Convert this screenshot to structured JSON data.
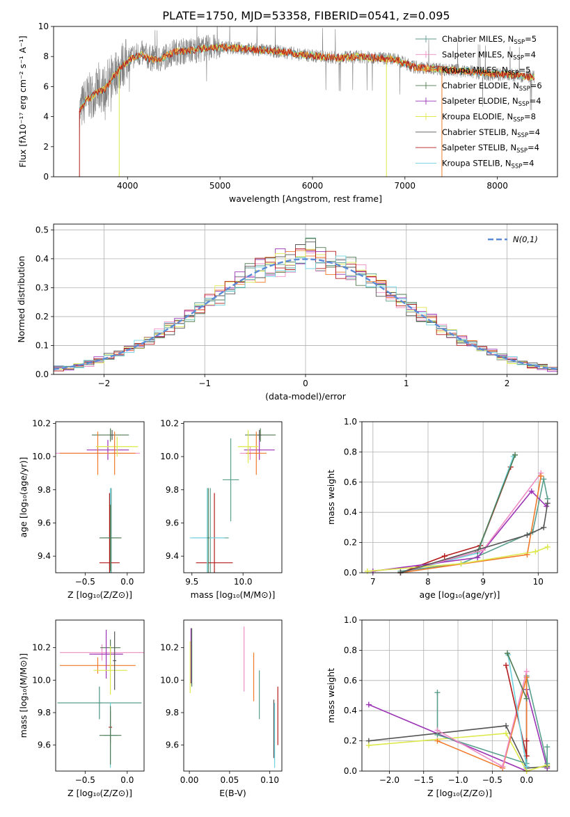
{
  "figure_title": "PLATE=1750, MJD=53358, FIBERID=0541, z=0.095",
  "models": [
    {
      "label": "Chabrier MILES, N",
      "sub": "SSP",
      "tail": "=5",
      "color": "#5a9e8c"
    },
    {
      "label": "Salpeter MILES, N",
      "sub": "SSP",
      "tail": "=4",
      "color": "#ef8cc4"
    },
    {
      "label": "Kroupa MILES, N",
      "sub": "SSP",
      "tail": "=5",
      "color": "#f07a2a"
    },
    {
      "label": "Chabrier ELODIE, N",
      "sub": "SSP",
      "tail": "=6",
      "color": "#4f7a52"
    },
    {
      "label": "Salpeter ELODIE, N",
      "sub": "SSP",
      "tail": "=4",
      "color": "#9b32b5"
    },
    {
      "label": "Kroupa ELODIE, N",
      "sub": "SSP",
      "tail": "=8",
      "color": "#dde84a"
    },
    {
      "label": "Chabrier STELIB, N",
      "sub": "SSP",
      "tail": "=4",
      "color": "#555555"
    },
    {
      "label": "Salpeter STELIB, N",
      "sub": "SSP",
      "tail": "=4",
      "color": "#b31b1b"
    },
    {
      "label": "Kroupa STELIB, N",
      "sub": "SSP",
      "tail": "=4",
      "color": "#6fd3e0"
    }
  ],
  "chart_data": [
    {
      "id": "spectrum",
      "type": "line",
      "xlabel": "wavelength [Angstrom, rest frame]",
      "ylabel": "Flux [fλ10⁻¹⁷ erg cm⁻² s⁻¹ A⁻¹]",
      "xlim": [
        3200,
        8650
      ],
      "ylim": [
        0,
        10
      ],
      "xticks": [
        4000,
        5000,
        6000,
        7000,
        8000
      ],
      "yticks": [
        0,
        2,
        4,
        6,
        8,
        10
      ],
      "legend": "right",
      "data_color": "#808080",
      "data_x": [
        3480,
        3550,
        3650,
        3750,
        3850,
        3950,
        4050,
        4150,
        4250,
        4350,
        4500,
        4700,
        4900,
        5100,
        5300,
        5500,
        5700,
        5900,
        6100,
        6300,
        6500,
        6700,
        6900,
        7100,
        7300,
        7500,
        7700,
        7900,
        8100,
        8300,
        8400
      ],
      "data_y": [
        4.3,
        5.2,
        5.6,
        5.9,
        6.8,
        7.5,
        8.0,
        8.2,
        7.9,
        7.8,
        8.3,
        8.4,
        8.6,
        8.6,
        8.5,
        8.4,
        8.3,
        8.1,
        8.0,
        7.9,
        8.0,
        7.9,
        7.8,
        7.3,
        7.2,
        7.1,
        7.0,
        6.8,
        6.8,
        6.7,
        6.6
      ],
      "model_y": [
        4.4,
        5.1,
        5.5,
        5.8,
        6.7,
        7.4,
        7.9,
        8.1,
        7.8,
        7.8,
        8.3,
        8.4,
        8.6,
        8.6,
        8.5,
        8.4,
        8.3,
        8.1,
        8.0,
        7.9,
        8.0,
        7.9,
        7.8,
        7.3,
        7.2,
        7.1,
        7.0,
        6.9,
        6.8,
        6.7,
        6.6
      ]
    },
    {
      "id": "residuals",
      "type": "histogram",
      "xlabel": "(data-model)/error",
      "ylabel": "Normed distribution",
      "xlim": [
        -2.5,
        2.5
      ],
      "ylim": [
        0,
        0.52
      ],
      "xticks": [
        -2,
        -1,
        0,
        1,
        2
      ],
      "yticks": [
        0.0,
        0.1,
        0.2,
        0.3,
        0.4,
        0.5
      ],
      "grid": true,
      "legend": "top-right",
      "legend_label": "N(0,1)",
      "gauss_color": "#5b8bd6",
      "bin_width": 0.1
    },
    {
      "id": "age-vs-z",
      "type": "errorbar",
      "xlabel": "Z [log₁₀(Z/Z⊙)]",
      "ylabel": "age  [log₁₀(age/yr)]",
      "xlim": [
        -0.85,
        0.2
      ],
      "ylim": [
        9.3,
        10.21
      ],
      "xticks": [
        -0.5,
        0.0
      ],
      "yticks": [
        9.4,
        9.6,
        9.8,
        10.0,
        10.2
      ],
      "points": [
        {
          "m": 0,
          "x": -0.19,
          "y": 9.51,
          "xe": 0.12,
          "ye": 0.3
        },
        {
          "m": 3,
          "x": -0.2,
          "y": 10.13,
          "xe": 0.22,
          "ye": 0.04
        },
        {
          "m": 4,
          "x": -0.23,
          "y": 10.04,
          "xe": 0.25,
          "ye": 0.06
        },
        {
          "m": 1,
          "x": -0.35,
          "y": 10.02,
          "xe": 0.5,
          "ye": 0.04
        },
        {
          "m": 2,
          "x": -0.35,
          "y": 10.02,
          "xe": 0.45,
          "ye": 0.13
        },
        {
          "m": 5,
          "x": -0.12,
          "y": 10.06,
          "xe": 0.25,
          "ye": 0.06
        },
        {
          "m": 6,
          "x": -0.18,
          "y": 10.13,
          "xe": 0.02,
          "ye": 0.03
        },
        {
          "m": 7,
          "x": -0.21,
          "y": 9.36,
          "xe": 0.12,
          "ye": 0.42
        },
        {
          "m": 8,
          "x": -0.2,
          "y": 9.51,
          "xe": 0.05,
          "ye": 0.3
        },
        {
          "m": 3,
          "x": -0.2,
          "y": 9.51,
          "xe": 0.13,
          "ye": 0.2
        },
        {
          "m": 2,
          "x": -0.15,
          "y": 10.02,
          "xe": 0.02,
          "ye": 0.13
        }
      ]
    },
    {
      "id": "age-vs-mass",
      "type": "errorbar",
      "xlabel": "mass [log₁₀(M/M⊙)]",
      "ylabel": "",
      "xlim": [
        9.42,
        10.38
      ],
      "ylim": [
        9.3,
        10.21
      ],
      "xticks": [
        9.5,
        10.0
      ],
      "yticks": [
        9.4,
        9.6,
        9.8,
        10.0,
        10.2
      ],
      "points": [
        {
          "m": 0,
          "x": 9.68,
          "y": 9.51,
          "xe": 0.18,
          "ye": 0.3
        },
        {
          "m": 3,
          "x": 10.17,
          "y": 10.13,
          "xe": 0.15,
          "ye": 0.04
        },
        {
          "m": 4,
          "x": 10.16,
          "y": 10.04,
          "xe": 0.15,
          "ye": 0.06
        },
        {
          "m": 1,
          "x": 10.07,
          "y": 10.02,
          "xe": 0.1,
          "ye": 0.04
        },
        {
          "m": 2,
          "x": 10.13,
          "y": 10.02,
          "xe": 0.1,
          "ye": 0.13
        },
        {
          "m": 5,
          "x": 10.05,
          "y": 10.06,
          "xe": 0.1,
          "ye": 0.1
        },
        {
          "m": 6,
          "x": 10.16,
          "y": 10.13,
          "xe": 0.02,
          "ye": 0.03
        },
        {
          "m": 7,
          "x": 9.72,
          "y": 9.36,
          "xe": 0.18,
          "ye": 0.42
        },
        {
          "m": 8,
          "x": 9.65,
          "y": 9.51,
          "xe": 0.17,
          "ye": 0.3
        },
        {
          "m": 3,
          "x": 9.66,
          "y": 9.51,
          "xe": 0.01,
          "ye": 0.3
        },
        {
          "m": 0,
          "x": 9.88,
          "y": 9.86,
          "xe": 0.08,
          "ye": 0.25
        }
      ]
    },
    {
      "id": "weight-vs-age",
      "type": "line",
      "xlabel": "age  [log₁₀(age/yr)]",
      "ylabel": "mass weight",
      "xlim": [
        6.8,
        10.35
      ],
      "ylim": [
        0,
        1
      ],
      "xticks": [
        7,
        8,
        9,
        10
      ],
      "yticks": [
        0.0,
        0.2,
        0.4,
        0.6,
        0.8,
        1.0
      ],
      "grid": true,
      "series": [
        {
          "m": 7,
          "x": [
            7.5,
            8.3,
            8.95,
            9.5
          ],
          "y": [
            0.0,
            0.11,
            0.18,
            0.7
          ]
        },
        {
          "m": 8,
          "x": [
            7.5,
            8.9,
            9.55
          ],
          "y": [
            0.0,
            0.13,
            0.77
          ]
        },
        {
          "m": 3,
          "x": [
            7.5,
            8.9,
            9.58
          ],
          "y": [
            0.0,
            0.14,
            0.78
          ]
        },
        {
          "m": 0,
          "x": [
            7.5,
            8.6,
            9.9,
            10.1,
            10.17
          ],
          "y": [
            0.01,
            0.06,
            0.27,
            0.62,
            0.49
          ]
        },
        {
          "m": 4,
          "x": [
            7.0,
            8.9,
            9.88,
            10.15
          ],
          "y": [
            0.01,
            0.1,
            0.54,
            0.44
          ]
        },
        {
          "m": 1,
          "x": [
            7.5,
            9.0,
            10.05
          ],
          "y": [
            0.0,
            0.15,
            0.66
          ]
        },
        {
          "m": 2,
          "x": [
            7.5,
            9.8,
            10.05
          ],
          "y": [
            0.0,
            0.12,
            0.64
          ]
        },
        {
          "m": 5,
          "x": [
            6.9,
            8.6,
            9.95,
            10.17
          ],
          "y": [
            0.01,
            0.06,
            0.14,
            0.17
          ]
        },
        {
          "m": 6,
          "x": [
            7.5,
            9.8,
            10.1,
            10.17
          ],
          "y": [
            0.0,
            0.25,
            0.3,
            0.46
          ]
        }
      ]
    },
    {
      "id": "mass-vs-z",
      "type": "errorbar",
      "xlabel": "Z [log₁₀(Z/Z⊙)]",
      "ylabel": "mass [log₁₀(M/M⊙)]",
      "xlim": [
        -0.85,
        0.2
      ],
      "ylim": [
        9.44,
        10.37
      ],
      "xticks": [
        -0.5,
        0.0
      ],
      "yticks": [
        9.6,
        9.8,
        10.0,
        10.2
      ],
      "points": [
        {
          "m": 0,
          "x": -0.33,
          "y": 9.86,
          "xe": 0.5,
          "ye": 0.1
        },
        {
          "m": 1,
          "x": -0.3,
          "y": 10.17,
          "xe": 0.5,
          "ye": 0.05
        },
        {
          "m": 2,
          "x": -0.35,
          "y": 10.09,
          "xe": 0.45,
          "ye": 0.05
        },
        {
          "m": 3,
          "x": -0.2,
          "y": 10.2,
          "xe": 0.12,
          "ye": 0.05
        },
        {
          "m": 4,
          "x": -0.25,
          "y": 10.16,
          "xe": 0.2,
          "ye": 0.15
        },
        {
          "m": 5,
          "x": -0.2,
          "y": 10.06,
          "xe": 0.2,
          "ye": 0.15
        },
        {
          "m": 6,
          "x": -0.15,
          "y": 10.12,
          "xe": 0.02,
          "ye": 0.18
        },
        {
          "m": 7,
          "x": -0.2,
          "y": 9.71,
          "xe": 0.02,
          "ye": 0.1
        },
        {
          "m": 8,
          "x": -0.2,
          "y": 9.66,
          "xe": 0.08,
          "ye": 0.2
        },
        {
          "m": 3,
          "x": -0.2,
          "y": 9.66,
          "xe": 0.13,
          "ye": 0.18
        },
        {
          "m": 0,
          "x": -0.33,
          "y": 9.86,
          "xe": 0.02,
          "ye": 0.1
        }
      ]
    },
    {
      "id": "mass-vs-ebv",
      "type": "errorbar",
      "xlabel": "E(B-V)",
      "ylabel": "",
      "xlim": [
        -0.007,
        0.115
      ],
      "ylim": [
        9.44,
        10.37
      ],
      "xticks": [
        0.0,
        0.05,
        0.1
      ],
      "yticks": [
        9.6,
        9.8,
        10.0,
        10.2
      ],
      "points": [
        {
          "m": 4,
          "x": 0.002,
          "y": 10.15,
          "xe": 0,
          "ye": 0.17
        },
        {
          "m": 5,
          "x": 0.001,
          "y": 10.08,
          "xe": 0,
          "ye": 0.16
        },
        {
          "m": 3,
          "x": 0.003,
          "y": 10.14,
          "xe": 0,
          "ye": 0.18
        },
        {
          "m": 1,
          "x": 0.068,
          "y": 10.13,
          "xe": 0,
          "ye": 0.2
        },
        {
          "m": 2,
          "x": 0.08,
          "y": 10.02,
          "xe": 0,
          "ye": 0.15
        },
        {
          "m": 0,
          "x": 0.087,
          "y": 9.91,
          "xe": 0,
          "ye": 0.15
        },
        {
          "m": 6,
          "x": 0.105,
          "y": 9.7,
          "xe": 0,
          "ye": 0.18
        },
        {
          "m": 8,
          "x": 0.106,
          "y": 9.66,
          "xe": 0,
          "ye": 0.2
        },
        {
          "m": 7,
          "x": 0.11,
          "y": 9.78,
          "xe": 0,
          "ye": 0.18
        }
      ]
    },
    {
      "id": "weight-vs-z",
      "type": "line",
      "xlabel": "Z [log₁₀(Z/Z⊙)]",
      "ylabel": "mass weight",
      "xlim": [
        -2.4,
        0.45
      ],
      "ylim": [
        0,
        1
      ],
      "xticks": [
        -2.0,
        -1.5,
        -1.0,
        -0.5,
        0.0
      ],
      "yticks": [
        0.0,
        0.2,
        0.4,
        0.6,
        0.8,
        1.0
      ],
      "grid": true,
      "series": [
        {
          "m": 4,
          "x": [
            -2.3,
            0.0,
            0.0,
            0.3
          ],
          "y": [
            0.44,
            0.0,
            0.54,
            0.02
          ]
        },
        {
          "m": 6,
          "x": [
            -2.3,
            -0.3,
            0.0,
            0.3
          ],
          "y": [
            0.2,
            0.3,
            0.02,
            0.03
          ]
        },
        {
          "m": 5,
          "x": [
            -2.3,
            -0.3,
            0.0,
            0.3
          ],
          "y": [
            0.17,
            0.25,
            0.0,
            0.04
          ]
        },
        {
          "m": 0,
          "x": [
            -1.3,
            -1.3,
            0.0,
            0.0,
            0.3,
            0.3
          ],
          "y": [
            0.52,
            0.24,
            0.05,
            0.63,
            0.05,
            0.16
          ]
        },
        {
          "m": 2,
          "x": [
            -1.3,
            -0.35,
            0.0,
            0.0
          ],
          "y": [
            0.2,
            0.02,
            0.62,
            0.1
          ]
        },
        {
          "m": 1,
          "x": [
            -1.3,
            -0.35,
            0.0
          ],
          "y": [
            0.27,
            0.03,
            0.66
          ]
        },
        {
          "m": 7,
          "x": [
            -0.3,
            0.0,
            0.0
          ],
          "y": [
            0.7,
            0.1,
            0.2
          ]
        },
        {
          "m": 8,
          "x": [
            -0.27,
            0.0
          ],
          "y": [
            0.77,
            0.03
          ]
        },
        {
          "m": 3,
          "x": [
            -0.28,
            0.0
          ],
          "y": [
            0.78,
            0.48
          ]
        }
      ]
    }
  ]
}
